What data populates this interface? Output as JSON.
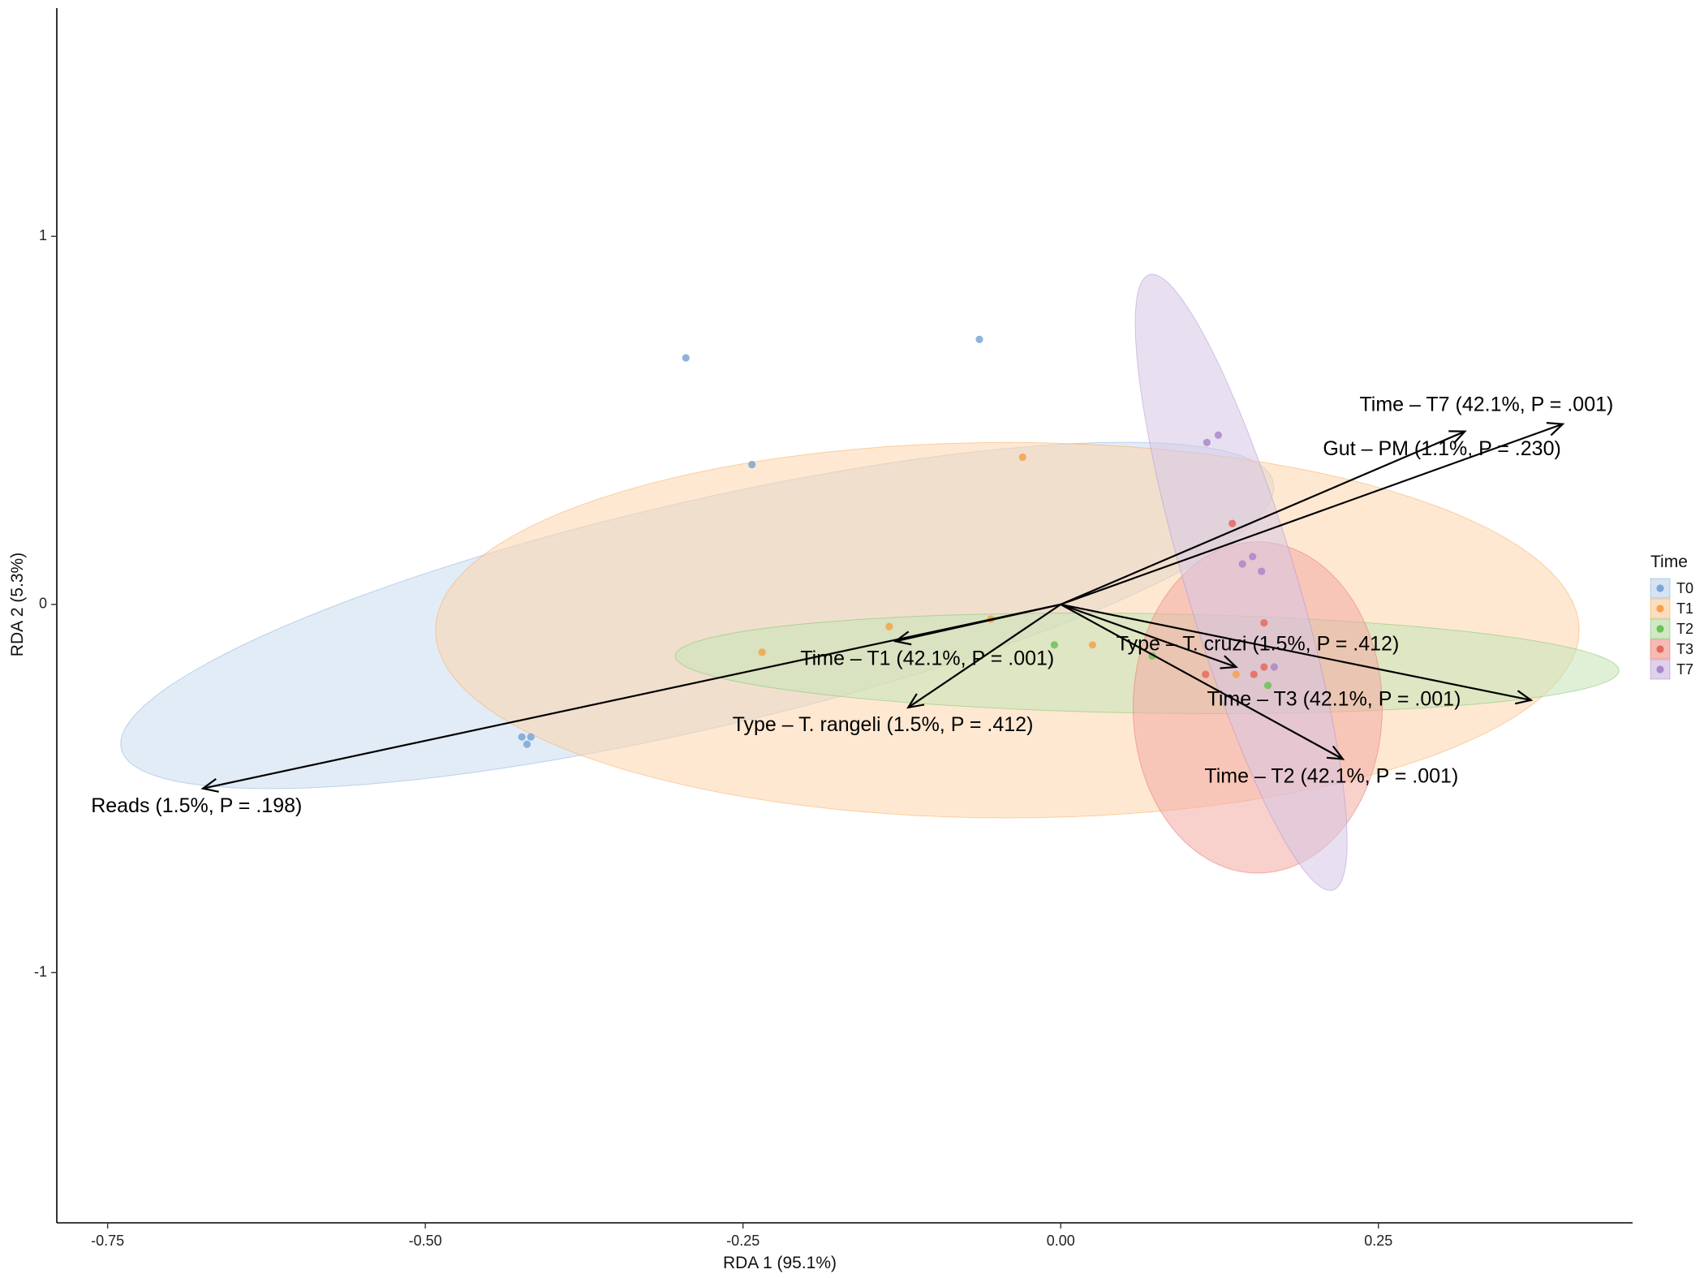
{
  "chart_data": {
    "type": "scatter",
    "xlabel": "RDA 1 (95.1%)",
    "ylabel": "RDA 2 (5.3%)",
    "xlim": [
      -0.79,
      0.45
    ],
    "ylim": [
      -1.68,
      1.62
    ],
    "x_ticks": [
      {
        "value": -0.75,
        "label": "-0.75"
      },
      {
        "value": -0.5,
        "label": "-0.50"
      },
      {
        "value": -0.25,
        "label": "-0.25"
      },
      {
        "value": 0,
        "label": "0.00"
      },
      {
        "value": 0.25,
        "label": "0.25"
      }
    ],
    "y_ticks": [
      {
        "value": 1,
        "label": "1"
      },
      {
        "value": 0,
        "label": "0"
      },
      {
        "value": -1,
        "label": "-1"
      }
    ],
    "grid": false,
    "legend": {
      "title": "Time",
      "position": "right",
      "entries": [
        {
          "key": "T0",
          "label": "T0",
          "color": "#7aa6d6",
          "fill": "#cbdcef"
        },
        {
          "key": "T1",
          "label": "T1",
          "color": "#f5a24b",
          "fill": "#fdd5ad"
        },
        {
          "key": "T2",
          "label": "T2",
          "color": "#6fbf5a",
          "fill": "#c4e3b6"
        },
        {
          "key": "T3",
          "label": "T3",
          "color": "#e5695f",
          "fill": "#f3aaa3"
        },
        {
          "key": "T7",
          "label": "T7",
          "color": "#a987c9",
          "fill": "#d6c6e6"
        }
      ]
    },
    "ellipses": [
      {
        "group": "T0",
        "cx": -0.286,
        "cy": -0.03,
        "a": 0.61,
        "b": 0.235,
        "angle_deg": 46.4
      },
      {
        "group": "T1",
        "cx": -0.042,
        "cy": -0.07,
        "a": 0.45,
        "b": 0.51,
        "angle_deg": 0
      },
      {
        "group": "T2",
        "cx": 0.068,
        "cy": -0.16,
        "a": 0.372,
        "b": 0.135,
        "angle_deg": -3.5
      },
      {
        "group": "T3",
        "cx": 0.155,
        "cy": -0.28,
        "a": 0.098,
        "b": 0.45,
        "angle_deg": 0
      },
      {
        "group": "T7",
        "cx": 0.142,
        "cy": 0.06,
        "a": 0.045,
        "b": 0.84,
        "angle_deg": 4.8
      }
    ],
    "series": [
      {
        "name": "T0",
        "points": [
          [
            -0.295,
            0.67
          ],
          [
            -0.064,
            0.72
          ],
          [
            -0.243,
            0.38
          ],
          [
            -0.424,
            -0.36
          ],
          [
            -0.417,
            -0.36
          ],
          [
            -0.42,
            -0.38
          ]
        ]
      },
      {
        "name": "T1",
        "points": [
          [
            -0.03,
            0.4
          ],
          [
            -0.235,
            -0.13
          ],
          [
            -0.135,
            -0.06
          ],
          [
            -0.055,
            -0.04
          ],
          [
            0.025,
            -0.11
          ],
          [
            0.138,
            -0.19
          ]
        ]
      },
      {
        "name": "T2",
        "points": [
          [
            -0.005,
            -0.11
          ],
          [
            0.072,
            -0.14
          ],
          [
            0.163,
            -0.22
          ]
        ]
      },
      {
        "name": "T3",
        "points": [
          [
            0.135,
            0.22
          ],
          [
            0.152,
            -0.19
          ],
          [
            0.16,
            -0.05
          ],
          [
            0.114,
            -0.19
          ],
          [
            0.16,
            -0.17
          ]
        ]
      },
      {
        "name": "T7",
        "points": [
          [
            0.115,
            0.44
          ],
          [
            0.124,
            0.46
          ],
          [
            0.143,
            0.11
          ],
          [
            0.151,
            0.13
          ],
          [
            0.158,
            0.09
          ],
          [
            0.168,
            -0.17
          ]
        ]
      }
    ],
    "arrows": [
      {
        "label": "Time – T7 (42.1%, P = .001)",
        "x": 0.318,
        "y": 0.47,
        "lx": 0.335,
        "ly": 0.54
      },
      {
        "label": "Gut – PM (1.1%, P = .230)",
        "x": 0.395,
        "y": 0.49,
        "lx": 0.3,
        "ly": 0.42
      },
      {
        "label": "Time – T1 (42.1%, P = .001)",
        "x": -0.13,
        "y": -0.1,
        "lx": -0.105,
        "ly": -0.15
      },
      {
        "label": "Type – T. cruzi (1.5%, P = .412)",
        "x": 0.138,
        "y": -0.17,
        "lx": 0.155,
        "ly": -0.11
      },
      {
        "label": "Time – T3 (42.1%, P = .001)",
        "x": 0.37,
        "y": -0.26,
        "lx": 0.215,
        "ly": -0.26
      },
      {
        "label": "Type – T. rangeli (1.5%, P = .412)",
        "x": -0.12,
        "y": -0.28,
        "lx": -0.14,
        "ly": -0.33
      },
      {
        "label": "Time – T2 (42.1%, P = .001)",
        "x": 0.222,
        "y": -0.42,
        "lx": 0.213,
        "ly": -0.47
      },
      {
        "label": "Reads (1.5%, P = .198)",
        "x": -0.675,
        "y": -0.5,
        "lx": -0.68,
        "ly": -0.55
      }
    ]
  }
}
